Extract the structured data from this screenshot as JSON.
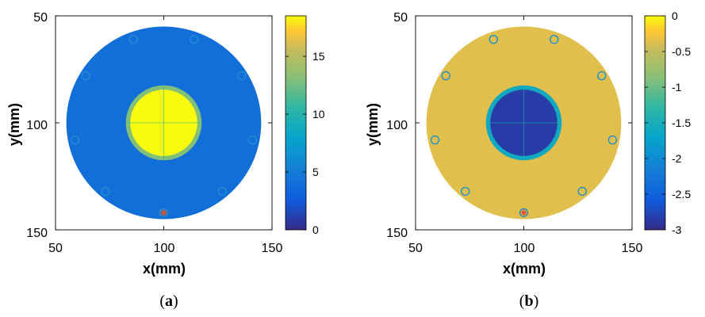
{
  "figure": {
    "colors": {
      "parula_dark": "#352a87",
      "parula_blue": "#4160e8",
      "parula_teal": "#20b3a8",
      "parula_green": "#8cc63f",
      "parula_orange": "#fbc32f",
      "parula_yellow": "#f9fb0e",
      "sensor": "#1f8fd0",
      "source": "#e0532b"
    },
    "panels": [
      {
        "caption_prefix": "(",
        "caption_letter": "a",
        "caption_suffix": ")",
        "chart_data": {
          "type": "heatmap",
          "xlabel": "x(mm)",
          "ylabel": "y(mm)",
          "xlim": [
            50,
            150
          ],
          "ylim": [
            50,
            150
          ],
          "y_reversed": true,
          "x_ticks": [
            "50",
            "100",
            "150"
          ],
          "y_ticks": [
            "50",
            "100",
            "150"
          ],
          "colorbar": {
            "range": [
              0,
              18.5
            ],
            "ticks": [
              "0",
              "5",
              "10",
              "15"
            ],
            "tick_values": [
              0,
              5,
              10,
              15
            ]
          },
          "regions": [
            {
              "shape": "disk",
              "center": [
                100,
                100
              ],
              "radius": 45,
              "value": 4
            },
            {
              "shape": "disk",
              "center": [
                100,
                100
              ],
              "radius": 17.5,
              "value": 13
            },
            {
              "shape": "disk",
              "center": [
                100,
                100
              ],
              "radius": 15.5,
              "value": 18.5
            }
          ],
          "sensors": [
            [
              86,
              61
            ],
            [
              114,
              61
            ],
            [
              136,
              78
            ],
            [
              141,
              108
            ],
            [
              127,
              132
            ],
            [
              73,
              132
            ],
            [
              59,
              108
            ],
            [
              64,
              78
            ]
          ],
          "source": [
            100,
            142
          ]
        }
      },
      {
        "caption_prefix": "(",
        "caption_letter": "b",
        "caption_suffix": ")",
        "chart_data": {
          "type": "heatmap",
          "xlabel": "x(mm)",
          "ylabel": "y(mm)",
          "xlim": [
            50,
            150
          ],
          "ylim": [
            50,
            150
          ],
          "y_reversed": true,
          "x_ticks": [
            "50",
            "100",
            "150"
          ],
          "y_ticks": [
            "50",
            "100",
            "150"
          ],
          "colorbar": {
            "range": [
              -3,
              0
            ],
            "ticks": [
              "0",
              "-0.5",
              "-1",
              "-1.5",
              "-2",
              "-2.5",
              "-3"
            ],
            "tick_values": [
              0,
              -0.5,
              -1,
              -1.5,
              -2,
              -2.5,
              -3
            ]
          },
          "regions": [
            {
              "shape": "disk",
              "center": [
                100,
                100
              ],
              "radius": 45,
              "value": -0.35
            },
            {
              "shape": "disk",
              "center": [
                100,
                100
              ],
              "radius": 17.5,
              "value": -1.6
            },
            {
              "shape": "disk",
              "center": [
                100,
                100
              ],
              "radius": 15.5,
              "value": -2.85
            }
          ],
          "sensors": [
            [
              86,
              61
            ],
            [
              114,
              61
            ],
            [
              136,
              78
            ],
            [
              141,
              108
            ],
            [
              127,
              132
            ],
            [
              73,
              132
            ],
            [
              59,
              108
            ],
            [
              64,
              78
            ]
          ],
          "source": [
            100,
            142
          ]
        }
      }
    ]
  }
}
